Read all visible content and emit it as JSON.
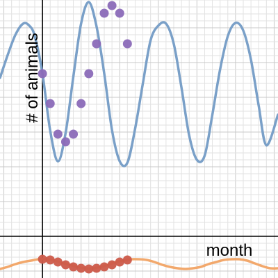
{
  "chart_data": {
    "type": "scatter",
    "title": "",
    "xlabel": "month",
    "ylabel": "# of animals",
    "xlim": [
      -0.55,
      3.05
    ],
    "ylim": [
      -0.6,
      3.4
    ],
    "grid": true,
    "colors": {
      "grid_minor": "#e2e2e2",
      "grid_major": "#c8c8c8",
      "axis": "#000000"
    },
    "series": [
      {
        "kind": "curve",
        "color": "#7aa0c8",
        "x": [
          -0.55,
          -0.45,
          -0.35,
          -0.25,
          -0.17,
          -0.1,
          0.0,
          0.1,
          0.2,
          0.3,
          0.4,
          0.5,
          0.6,
          0.7,
          0.8,
          0.9,
          1.0,
          1.1,
          1.2,
          1.3,
          1.4,
          1.5,
          1.6,
          1.7,
          1.8,
          1.9,
          2.0,
          2.1,
          2.2,
          2.3,
          2.4,
          2.5,
          2.6,
          2.7,
          2.8,
          2.9,
          3.05
        ],
        "y": [
          2.28,
          2.61,
          2.9,
          3.06,
          3.03,
          2.88,
          2.34,
          1.52,
          1.08,
          1.49,
          2.3,
          3.06,
          3.37,
          3.02,
          2.34,
          1.53,
          1.08,
          1.06,
          1.55,
          2.2,
          2.82,
          3.03,
          3.06,
          2.77,
          2.14,
          1.45,
          1.1,
          1.16,
          1.75,
          2.4,
          2.88,
          3.07,
          2.96,
          2.54,
          1.88,
          1.31,
          1.75
        ]
      },
      {
        "kind": "points",
        "color": "#8b6ab8",
        "x": [
          0.0,
          0.1,
          0.2,
          0.3,
          0.4,
          0.5,
          0.6,
          0.7,
          0.8,
          0.9,
          1.0,
          1.1
        ],
        "y": [
          2.34,
          1.91,
          1.47,
          1.36,
          1.47,
          1.91,
          2.34,
          2.77,
          3.21,
          3.32,
          3.21,
          2.77
        ]
      },
      {
        "kind": "curve",
        "color": "#f2a86c",
        "x": [
          -0.55,
          -0.45,
          -0.35,
          -0.25,
          -0.15,
          -0.05,
          0.05,
          0.15,
          0.25,
          0.35,
          0.45,
          0.55,
          0.65,
          0.75,
          0.85,
          0.95,
          1.05,
          1.15,
          1.25,
          1.35,
          1.45,
          1.55,
          1.65,
          1.75,
          1.85,
          1.95,
          2.05,
          2.15,
          2.25,
          2.35,
          2.45,
          2.55,
          2.65,
          2.75,
          2.85,
          2.95,
          3.05
        ],
        "y": [
          -0.47,
          -0.44,
          -0.4,
          -0.37,
          -0.35,
          -0.33,
          -0.33,
          -0.35,
          -0.38,
          -0.41,
          -0.44,
          -0.46,
          -0.46,
          -0.44,
          -0.41,
          -0.37,
          -0.35,
          -0.33,
          -0.33,
          -0.34,
          -0.37,
          -0.41,
          -0.44,
          -0.46,
          -0.47,
          -0.46,
          -0.44,
          -0.4,
          -0.37,
          -0.34,
          -0.33,
          -0.33,
          -0.35,
          -0.39,
          -0.43,
          -0.46,
          -0.46
        ]
      },
      {
        "kind": "points",
        "color": "#cc5a4a",
        "x": [
          0.0,
          0.1,
          0.2,
          0.3,
          0.4,
          0.5,
          0.6,
          0.7,
          0.8,
          0.9,
          1.0,
          1.1
        ],
        "y": [
          -0.33,
          -0.34,
          -0.37,
          -0.41,
          -0.44,
          -0.46,
          -0.47,
          -0.46,
          -0.44,
          -0.41,
          -0.37,
          -0.34
        ]
      }
    ]
  }
}
